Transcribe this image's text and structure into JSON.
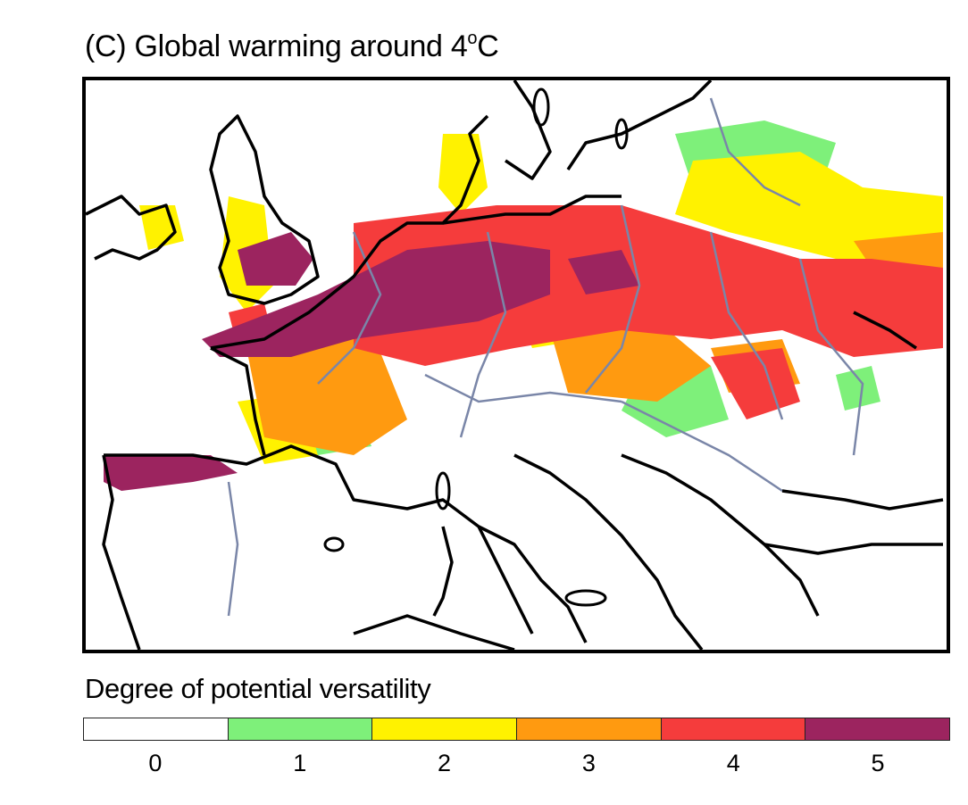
{
  "title": {
    "prefix": "(C) Global warming around 4",
    "superscript": "o",
    "suffix": "C"
  },
  "legend": {
    "title": "Degree of potential versatility",
    "classes": [
      {
        "label": "0",
        "color": "#ffffff"
      },
      {
        "label": "1",
        "color": "#7ef07a"
      },
      {
        "label": "2",
        "color": "#fff200"
      },
      {
        "label": "3",
        "color": "#ff9a10"
      },
      {
        "label": "4",
        "color": "#f53c3c"
      },
      {
        "label": "5",
        "color": "#9c245f"
      }
    ]
  },
  "map": {
    "region": "Europe",
    "coastline_color": "#000000",
    "border_color": "#7a86a8"
  }
}
